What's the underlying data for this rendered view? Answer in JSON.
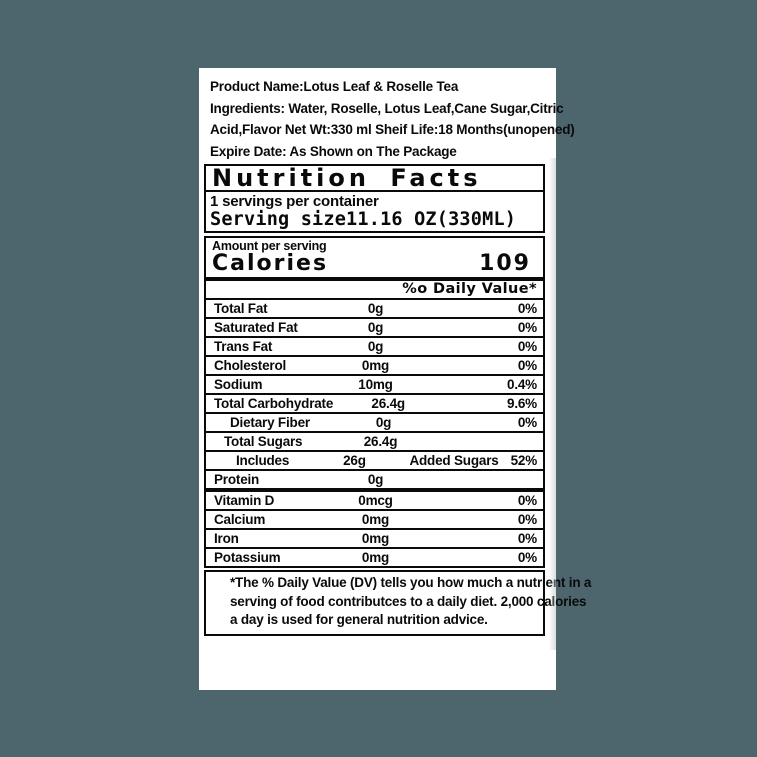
{
  "page": {
    "background_color": "#4d666d",
    "label_background": "#ffffff"
  },
  "product_info": {
    "lines": [
      "Product Name:Lotus Leaf & Roselle Tea",
      "Ingredients: Water, Roselle, Lotus Leaf,Cane Sugar,Citric",
      "Acid,Flavor  Net Wt:330 ml  Sheif Life:18 Months(unopened)",
      "Expire Date: As Shown on The Package"
    ]
  },
  "nutrition_facts": {
    "title": "Nutrition Facts",
    "servings_per_container": "1 servings per container",
    "serving_size_line": "Serving size11.16 OZ(330ML)",
    "amount_per_serving": "Amount per serving",
    "calories_label": "Calories",
    "calories_value": "109",
    "daily_value_header": "%o Daily Value*",
    "rows": [
      {
        "name": "Total Fat",
        "amount": "0g",
        "dv": "0%"
      },
      {
        "name": "Saturated Fat",
        "amount": "0g",
        "dv": "0%"
      },
      {
        "name": "Trans Fat",
        "amount": "0g",
        "dv": "0%"
      },
      {
        "name": "Cholesterol",
        "amount": "0mg",
        "dv": "0%"
      },
      {
        "name": "Sodium",
        "amount": "10mg",
        "dv": "0.4%"
      },
      {
        "name": "Total Carbohydrate",
        "amount": "26.4g",
        "dv": "9.6%"
      },
      {
        "name": "Dietary Fiber",
        "amount": "0g",
        "dv": "0%"
      },
      {
        "name": "Total Sugars",
        "amount": "26.4g",
        "dv": ""
      },
      {
        "name": "Includes",
        "amount": "26g",
        "extra": "Added Sugars",
        "dv": "52%"
      },
      {
        "name": "Protein",
        "amount": "0g",
        "dv": ""
      },
      {
        "name": "Vitamin D",
        "amount": "0mcg",
        "dv": "0%"
      },
      {
        "name": "Calcium",
        "amount": "0mg",
        "dv": "0%"
      },
      {
        "name": "Iron",
        "amount": "0mg",
        "dv": "0%"
      },
      {
        "name": "Potassium",
        "amount": "0mg",
        "dv": "0%"
      }
    ],
    "footnote_lines": [
      "*The % Daily Value (DV) tells you how much a nutrient in a",
      "serving of food contributces to a daily diet. 2,000 calories",
      "a day is used for general nutrition advice."
    ]
  }
}
